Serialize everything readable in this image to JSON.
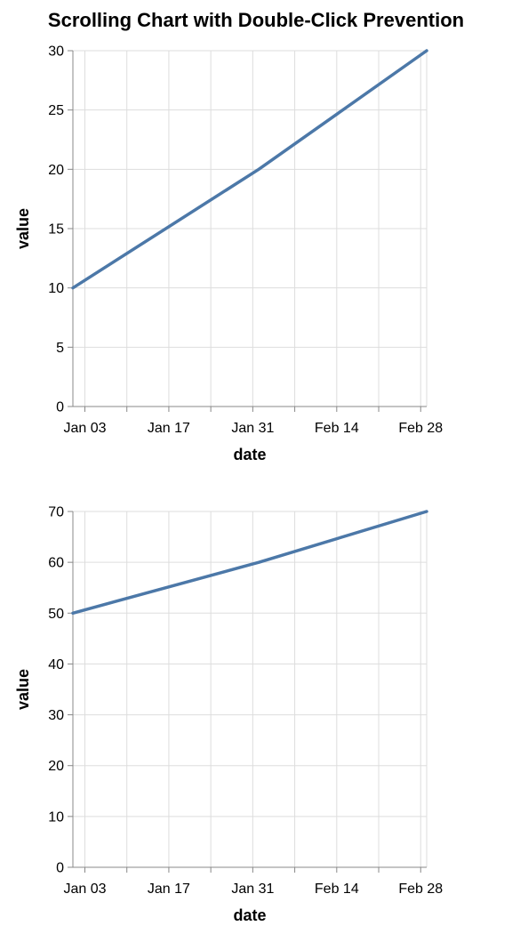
{
  "title": "Scrolling Chart with Double-Click Prevention",
  "colors": {
    "series": "#4c78a8"
  },
  "chart_data": [
    {
      "type": "line",
      "xlabel": "date",
      "ylabel": "value",
      "ylim": [
        0,
        30
      ],
      "y_ticks": [
        0,
        5,
        10,
        15,
        20,
        25,
        30
      ],
      "xlim": [
        "2024-01-01",
        "2024-02-29"
      ],
      "x_ticks": [
        {
          "date": "2024-01-03",
          "label": "Jan 03"
        },
        {
          "date": "2024-01-17",
          "label": "Jan 17"
        },
        {
          "date": "2024-01-31",
          "label": "Jan 31"
        },
        {
          "date": "2024-02-14",
          "label": "Feb 14"
        },
        {
          "date": "2024-02-28",
          "label": "Feb 28"
        }
      ],
      "grid": true,
      "series": [
        {
          "x": [
            "2024-01-01",
            "2024-02-01",
            "2024-02-29"
          ],
          "values": [
            10,
            20,
            30
          ]
        }
      ]
    },
    {
      "type": "line",
      "xlabel": "date",
      "ylabel": "value",
      "ylim": [
        0,
        70
      ],
      "y_ticks": [
        0,
        10,
        20,
        30,
        40,
        50,
        60,
        70
      ],
      "xlim": [
        "2024-01-01",
        "2024-02-29"
      ],
      "x_ticks": [
        {
          "date": "2024-01-03",
          "label": "Jan 03"
        },
        {
          "date": "2024-01-17",
          "label": "Jan 17"
        },
        {
          "date": "2024-01-31",
          "label": "Jan 31"
        },
        {
          "date": "2024-02-14",
          "label": "Feb 14"
        },
        {
          "date": "2024-02-28",
          "label": "Feb 28"
        }
      ],
      "grid": true,
      "series": [
        {
          "x": [
            "2024-01-01",
            "2024-02-01",
            "2024-02-29"
          ],
          "values": [
            50,
            60,
            70
          ]
        }
      ]
    }
  ]
}
